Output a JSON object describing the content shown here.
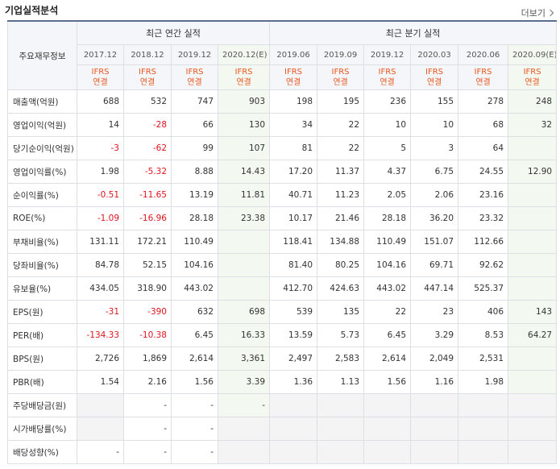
{
  "title": "기업실적분석",
  "more": "더보기",
  "row_header": "주요재무정보",
  "groups": {
    "annual": "최근 연간 실적",
    "quarter": "최근 분기 실적"
  },
  "periods": [
    "2017.12",
    "2018.12",
    "2019.12",
    "2020.12(E)",
    "2019.06",
    "2019.09",
    "2019.12",
    "2020.03",
    "2020.06",
    "2020.09(E)"
  ],
  "basis_line1": "IFRS",
  "basis_line2": "연결",
  "rows": [
    {
      "label": "매출액(억원)",
      "values": [
        "688",
        "532",
        "747",
        "903",
        "198",
        "195",
        "236",
        "155",
        "278",
        "248"
      ]
    },
    {
      "label": "영업이익(억원)",
      "values": [
        "14",
        "-28",
        "66",
        "130",
        "34",
        "22",
        "10",
        "10",
        "68",
        "32"
      ]
    },
    {
      "label": "당기순이익(억원)",
      "values": [
        "-3",
        "-62",
        "99",
        "107",
        "81",
        "22",
        "5",
        "3",
        "64",
        ""
      ]
    },
    {
      "label": "영업이익률(%)",
      "values": [
        "1.98",
        "-5.32",
        "8.88",
        "14.43",
        "17.20",
        "11.37",
        "4.37",
        "6.75",
        "24.55",
        "12.90"
      ]
    },
    {
      "label": "순이익률(%)",
      "values": [
        "-0.51",
        "-11.65",
        "13.19",
        "11.81",
        "40.71",
        "11.23",
        "2.05",
        "2.06",
        "23.16",
        ""
      ]
    },
    {
      "label": "ROE(%)",
      "values": [
        "-1.09",
        "-16.96",
        "28.18",
        "23.38",
        "10.17",
        "21.46",
        "28.18",
        "36.20",
        "23.32",
        ""
      ]
    },
    {
      "label": "부채비율(%)",
      "values": [
        "131.11",
        "172.21",
        "110.49",
        "",
        "118.41",
        "134.88",
        "110.49",
        "151.07",
        "112.66",
        ""
      ]
    },
    {
      "label": "당좌비율(%)",
      "values": [
        "84.78",
        "52.15",
        "104.16",
        "",
        "81.40",
        "80.25",
        "104.16",
        "69.71",
        "92.62",
        ""
      ]
    },
    {
      "label": "유보율(%)",
      "values": [
        "434.05",
        "318.90",
        "443.02",
        "",
        "412.70",
        "424.63",
        "443.02",
        "447.14",
        "525.37",
        ""
      ]
    },
    {
      "label": "EPS(원)",
      "values": [
        "-31",
        "-390",
        "632",
        "698",
        "539",
        "135",
        "22",
        "23",
        "406",
        "143"
      ]
    },
    {
      "label": "PER(배)",
      "values": [
        "-134.33",
        "-10.38",
        "6.45",
        "16.33",
        "13.59",
        "5.73",
        "6.45",
        "3.29",
        "8.53",
        "64.27"
      ]
    },
    {
      "label": "BPS(원)",
      "values": [
        "2,726",
        "1,869",
        "2,614",
        "3,361",
        "2,497",
        "2,583",
        "2,614",
        "2,049",
        "2,531",
        ""
      ]
    },
    {
      "label": "PBR(배)",
      "values": [
        "1.54",
        "2.16",
        "1.56",
        "3.39",
        "1.36",
        "1.13",
        "1.56",
        "1.16",
        "1.98",
        ""
      ]
    },
    {
      "label": "주당배당금(원)",
      "values": [
        "",
        "-",
        "-",
        "-",
        "",
        "",
        "",
        "",
        "",
        ""
      ]
    },
    {
      "label": "시가배당률(%)",
      "values": [
        "",
        "-",
        "-",
        "",
        "",
        "",
        "",
        "",
        "",
        ""
      ]
    },
    {
      "label": "배당성향(%)",
      "values": [
        "-",
        "-",
        "-",
        "",
        "",
        "",
        "",
        "",
        "",
        ""
      ]
    }
  ],
  "colors": {
    "negative": "#e0141e",
    "ifrs": "#e8561e",
    "estimate_bg": "#f3f9f1"
  }
}
